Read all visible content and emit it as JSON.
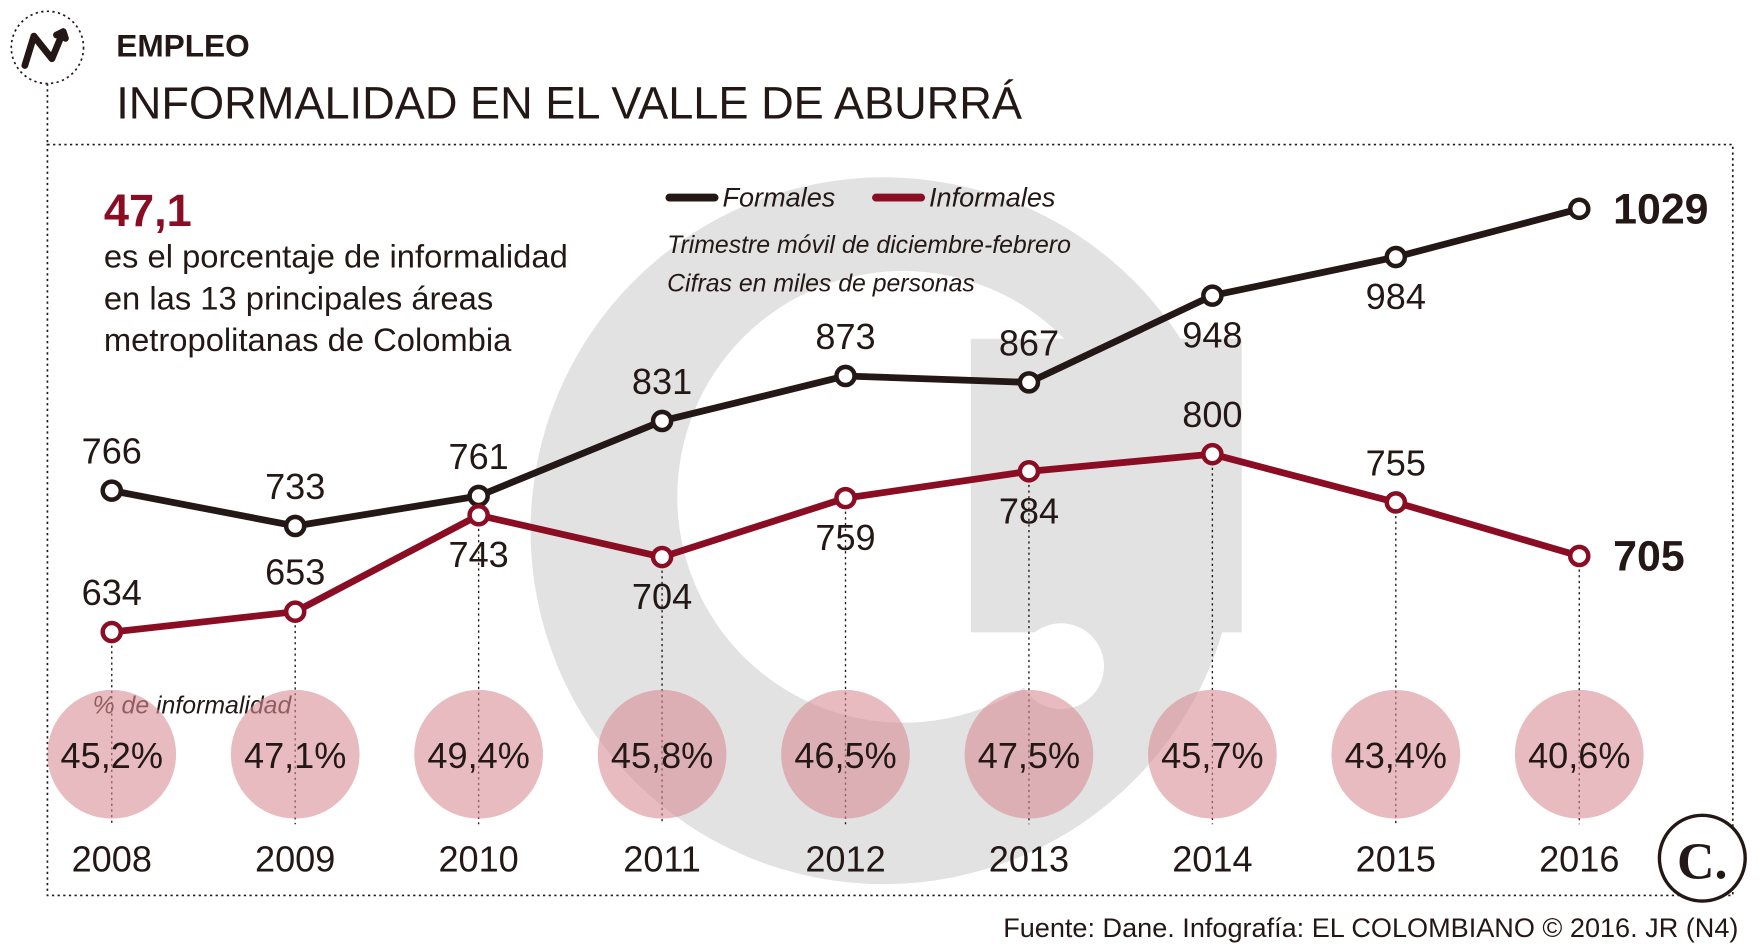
{
  "kicker": "EMPLEO",
  "title": "INFORMALIDAD EN EL VALLE DE ABURRÁ",
  "highlight": "47,1",
  "highlight_text": [
    "es el porcentaje de informalidad",
    "en las 13 principales áreas",
    "metropolitanas de Colombia"
  ],
  "notes": [
    "Trimestre móvil de diciembre-febrero",
    "Cifras en miles de personas"
  ],
  "source": "Fuente: Dane. Infografía: EL COLOMBIANO © 2016. JR (N4)",
  "logo": "C.",
  "chart_data": {
    "type": "line",
    "categories": [
      "2008",
      "2009",
      "2010",
      "2011",
      "2012",
      "2013",
      "2014",
      "2015",
      "2016"
    ],
    "ylim": [
      600,
      1050
    ],
    "series": [
      {
        "name": "Formales",
        "color": "#231815",
        "values": [
          766,
          733,
          761,
          831,
          873,
          867,
          948,
          984,
          1029
        ]
      },
      {
        "name": "Informales",
        "color": "#8a0d24",
        "values": [
          634,
          653,
          743,
          704,
          759,
          784,
          800,
          755,
          705
        ]
      }
    ],
    "rates": {
      "label": "% de informalidad",
      "color": "#d98d96",
      "values": [
        45.2,
        47.1,
        49.4,
        45.8,
        46.5,
        47.5,
        45.7,
        43.4,
        40.6
      ],
      "value_labels": [
        "45,2%",
        "47,1%",
        "49,4%",
        "45,8%",
        "46,5%",
        "47,5%",
        "45,7%",
        "43,4%",
        "40,6%"
      ]
    }
  }
}
